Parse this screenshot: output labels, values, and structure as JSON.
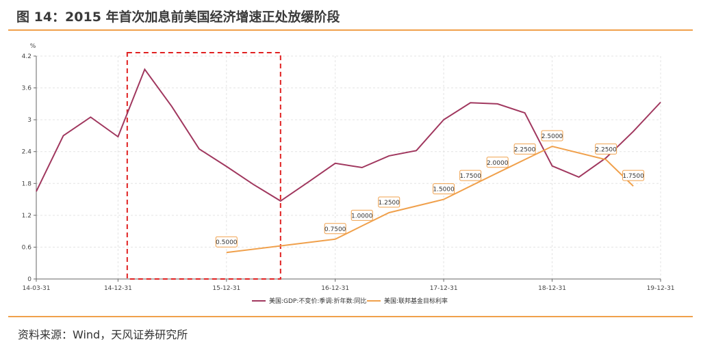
{
  "title": "图 14：2015 年首次加息前美国经济增速正处放缓阶段",
  "source": "资料来源：Wind，天风证券研究所",
  "chart_data": {
    "type": "line",
    "unit_label": "%",
    "ylim": [
      0,
      4.2
    ],
    "yticks": [
      "0",
      "0.6",
      "1.2",
      "1.8",
      "2.4",
      "3",
      "3.6",
      "4.2"
    ],
    "x_tick_labels": [
      "14-03-31",
      "14-12-31",
      "15-12-31",
      "16-12-31",
      "17-12-31",
      "18-12-31",
      "19-12-31"
    ],
    "series": [
      {
        "name": "美国:GDP:不变价:季调:折年数:同比",
        "color": "#a0375e",
        "points": [
          [
            "2014-03-31",
            1.65
          ],
          [
            "2014-06-30",
            2.7
          ],
          [
            "2014-09-30",
            3.05
          ],
          [
            "2014-12-31",
            2.68
          ],
          [
            "2015-03-31",
            3.95
          ],
          [
            "2015-06-30",
            3.25
          ],
          [
            "2015-09-30",
            2.45
          ],
          [
            "2015-12-31",
            2.12
          ],
          [
            "2016-03-31",
            1.78
          ],
          [
            "2016-06-30",
            1.47
          ],
          [
            "2016-09-30",
            1.82
          ],
          [
            "2016-12-31",
            2.18
          ],
          [
            "2017-03-31",
            2.1
          ],
          [
            "2017-06-30",
            2.32
          ],
          [
            "2017-09-30",
            2.42
          ],
          [
            "2017-12-31",
            3.0
          ],
          [
            "2018-03-31",
            3.32
          ],
          [
            "2018-06-30",
            3.3
          ],
          [
            "2018-09-30",
            3.13
          ],
          [
            "2018-12-31",
            2.13
          ],
          [
            "2019-03-31",
            1.92
          ],
          [
            "2019-06-30",
            2.28
          ],
          [
            "2019-09-30",
            2.78
          ],
          [
            "2019-12-31",
            3.33
          ]
        ]
      },
      {
        "name": "美国:联邦基金目标利率",
        "color": "#f0a04b",
        "points": [
          [
            "2015-12-31",
            0.5
          ],
          [
            "2016-12-31",
            0.75
          ],
          [
            "2017-03-31",
            1.0
          ],
          [
            "2017-06-30",
            1.25
          ],
          [
            "2017-12-31",
            1.5
          ],
          [
            "2018-03-31",
            1.75
          ],
          [
            "2018-06-30",
            2.0
          ],
          [
            "2018-09-30",
            2.25
          ],
          [
            "2018-12-31",
            2.5
          ],
          [
            "2019-06-30",
            2.25
          ],
          [
            "2019-09-30",
            1.75
          ]
        ],
        "data_labels": [
          "0.5000",
          "0.7500",
          "1.0000",
          "1.2500",
          "1.5000",
          "1.7500",
          "2.0000",
          "2.2500",
          "2.5000",
          "2.2500",
          "1.7500"
        ]
      }
    ],
    "highlight_box": {
      "from": "2015-01-31",
      "to": "2016-06-30",
      "color": "#e02020",
      "style": "dashed"
    },
    "legend_position": "bottom-center",
    "grid": true
  }
}
